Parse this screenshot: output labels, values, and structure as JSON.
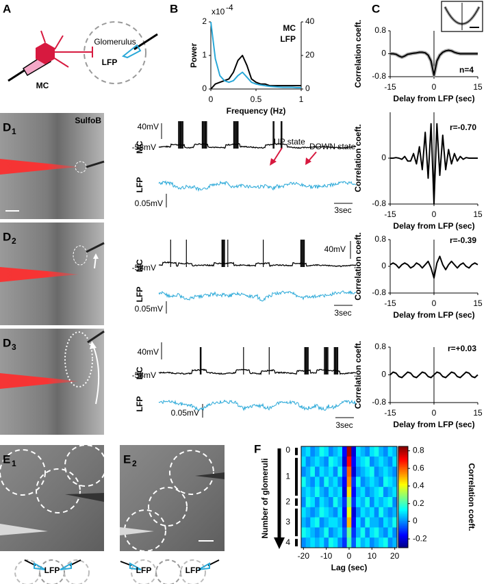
{
  "figure": {
    "A": {
      "label": "A",
      "mc": "MC",
      "glomerulus": "Glomerulus",
      "lfp": "LFP"
    },
    "B": {
      "label": "B",
      "scale_base": "x10",
      "scale_exponent": "-4"
    },
    "C": {
      "label": "C"
    },
    "D": [
      {
        "letter": "D",
        "sub": "1",
        "dye": "SulfoB",
        "mc": "MC",
        "lfp": "LFP",
        "mc_scale": "40mV",
        "rest": "-58mV",
        "lfp_scale": "0.05mV",
        "time_scale": "3sec",
        "up": "UP state",
        "down": "DOWN state"
      },
      {
        "letter": "D",
        "sub": "2",
        "mc": "MC",
        "lfp": "LFP",
        "mc_scale": "40mV",
        "rest": "-58mV",
        "lfp_scale": "0.05mV",
        "time_scale": "3sec"
      },
      {
        "letter": "D",
        "sub": "3",
        "mc": "MC",
        "lfp": "LFP",
        "mc_scale": "40mV",
        "rest": "-58mV",
        "lfp_scale": "0.05mV",
        "time_scale": "3sec"
      }
    ],
    "E": [
      {
        "letter": "E",
        "sub": "1",
        "lfp": "LFP"
      },
      {
        "letter": "E",
        "sub": "2",
        "lfp_left": "LFP",
        "lfp_right": "LFP"
      }
    ],
    "F": {
      "label": "F",
      "arrow_label": "Number of glomeruli"
    }
  },
  "chart_data": [
    {
      "type": "line",
      "ylabel": "Power",
      "xlabel": "Frequency (Hz)",
      "legend": "upper right",
      "x": [
        0,
        0.05,
        0.1,
        0.15,
        0.2,
        0.25,
        0.3,
        0.35,
        0.4,
        0.45,
        0.5,
        0.55,
        0.6,
        0.65,
        0.7,
        0.75,
        0.8,
        0.85,
        0.9,
        0.95,
        1
      ],
      "xlim": [
        0,
        1
      ],
      "xticks": [
        0,
        0.5,
        1
      ],
      "ylim": [
        0,
        2
      ],
      "yticks": [
        0,
        1,
        2
      ],
      "y2lim": [
        0,
        40
      ],
      "y2ticks": [
        0,
        20,
        40
      ],
      "series": [
        {
          "name": "MC",
          "color": "#000000",
          "axis": "y2",
          "values": [
            0,
            3,
            4,
            5,
            6,
            10,
            17,
            20,
            14,
            6,
            4,
            3,
            3,
            2,
            2,
            2,
            2,
            2,
            2,
            2,
            2
          ]
        },
        {
          "name": "LFP",
          "color": "#29a8d8",
          "values": [
            2,
            0.9,
            0.4,
            0.25,
            0.2,
            0.25,
            0.4,
            0.5,
            0.35,
            0.2,
            0.15,
            0.12,
            0.1,
            0.08,
            0.07,
            0.06,
            0.05,
            0.05,
            0.05,
            0.04,
            0.04
          ]
        }
      ]
    },
    {
      "type": "line",
      "ylabel": "Correlation coeft.",
      "xlabel": "Delay from LFP (sec)",
      "annotation": "n=4",
      "x": [
        -15,
        -14,
        -13,
        -12,
        -11,
        -10,
        -9,
        -8,
        -7,
        -6,
        -5,
        -4,
        -3,
        -2,
        -1,
        0,
        1,
        2,
        3,
        4,
        5,
        6,
        7,
        8,
        9,
        10,
        11,
        12,
        13,
        14,
        15
      ],
      "xlim": [
        -15,
        15
      ],
      "xticks": [
        -15,
        0,
        15
      ],
      "ylim": [
        -0.8,
        0.8
      ],
      "yticks": [
        -0.8,
        0,
        0.8
      ],
      "series": [
        {
          "color": "#000000",
          "values": [
            0,
            0,
            -0.02,
            -0.08,
            -0.12,
            -0.08,
            -0.02,
            0,
            0.02,
            0.03,
            0.05,
            0.05,
            0.03,
            -0.05,
            -0.25,
            -0.75,
            -0.25,
            -0.05,
            0.05,
            0.1,
            0.12,
            0.1,
            0.05,
            0.02,
            0,
            0,
            0,
            0,
            0,
            0,
            0
          ]
        }
      ]
    },
    {
      "type": "line",
      "ylabel": "Correlation coeft.",
      "xlabel": "Delay from LFP (sec)",
      "annotation": "r=-0.70",
      "x": [
        -15,
        -14,
        -13,
        -12,
        -11,
        -10,
        -9,
        -8,
        -7,
        -6,
        -5,
        -4,
        -3,
        -2,
        -1,
        0,
        1,
        2,
        3,
        4,
        5,
        6,
        7,
        8,
        9,
        10,
        11,
        12,
        13,
        14,
        15
      ],
      "xlim": [
        -15,
        15
      ],
      "xticks": [
        -15,
        0,
        15
      ],
      "ylim": [
        -0.8,
        0.8
      ],
      "yticks": [
        -0.8,
        0
      ],
      "series": [
        {
          "color": "#000000",
          "values": [
            0,
            0,
            0.01,
            0,
            -0.02,
            0.03,
            -0.05,
            -0.05,
            0.08,
            -0.1,
            0.2,
            -0.2,
            0.45,
            -0.35,
            0.6,
            -0.8,
            0.6,
            -0.3,
            0.4,
            -0.2,
            0.15,
            -0.1,
            0.08,
            -0.05,
            0.03,
            -0.02,
            0.01,
            0,
            0,
            0,
            0
          ]
        }
      ]
    },
    {
      "type": "line",
      "ylabel": "Correlation coeft.",
      "xlabel": "Delay from LFP (sec)",
      "annotation": "r=-0.39",
      "x": [
        -15,
        -14,
        -13,
        -12,
        -11,
        -10,
        -9,
        -8,
        -7,
        -6,
        -5,
        -4,
        -3,
        -2,
        -1,
        0,
        1,
        2,
        3,
        4,
        5,
        6,
        7,
        8,
        9,
        10,
        11,
        12,
        13,
        14,
        15
      ],
      "xlim": [
        -15,
        15
      ],
      "xticks": [
        -15,
        0,
        15
      ],
      "ylim": [
        -0.8,
        0.8
      ],
      "yticks": [
        -0.8,
        0,
        0.8
      ],
      "series": [
        {
          "color": "#000000",
          "values": [
            0.05,
            0.1,
            0.05,
            -0.05,
            0.05,
            0.1,
            0.05,
            -0.05,
            0,
            0.1,
            0.05,
            -0.05,
            0.05,
            0.15,
            -0.05,
            -0.35,
            0.1,
            0.3,
            0.05,
            -0.1,
            0.05,
            0.15,
            0.05,
            -0.05,
            0.05,
            0.1,
            0,
            -0.05,
            0.05,
            0.1,
            0.05
          ]
        }
      ]
    },
    {
      "type": "line",
      "ylabel": "Correlation coeft.",
      "xlabel": "Delay from LFP (sec)",
      "annotation": "r=+0.03",
      "x": [
        -15,
        -14,
        -13,
        -12,
        -11,
        -10,
        -9,
        -8,
        -7,
        -6,
        -5,
        -4,
        -3,
        -2,
        -1,
        0,
        1,
        2,
        3,
        4,
        5,
        6,
        7,
        8,
        9,
        10,
        11,
        12,
        13,
        14,
        15
      ],
      "xlim": [
        -15,
        15
      ],
      "xticks": [
        -15,
        0,
        15
      ],
      "ylim": [
        -0.8,
        0.8
      ],
      "yticks": [
        -0.8,
        0,
        0.8
      ],
      "series": [
        {
          "color": "#000000",
          "values": [
            0,
            0.08,
            0.05,
            -0.05,
            -0.08,
            0,
            0.08,
            0.05,
            -0.05,
            -0.08,
            0,
            0.08,
            0.05,
            -0.05,
            -0.08,
            0,
            0.08,
            0.05,
            -0.05,
            -0.08,
            0,
            0.08,
            0.05,
            -0.05,
            -0.08,
            0,
            0.08,
            0.05,
            -0.05,
            -0.08,
            0
          ]
        }
      ]
    },
    {
      "type": "heatmap",
      "xlabel": "Lag (sec)",
      "zlabel": "Correlation coeft.",
      "colormap": "jet",
      "x": [
        -20,
        -18,
        -16,
        -14,
        -12,
        -10,
        -8,
        -6,
        -4,
        -2,
        0,
        2,
        4,
        6,
        8,
        10,
        12,
        14,
        16,
        18,
        20
      ],
      "xlim": [
        -21,
        21
      ],
      "xticks": [
        -20,
        -10,
        0,
        10,
        20
      ],
      "zlim": [
        -0.3,
        0.85
      ],
      "zticks": [
        0.8,
        0.6,
        0.4,
        0.2,
        0,
        -0.2
      ],
      "row_labels": [
        "0",
        "1",
        null,
        null,
        null,
        "2",
        "3",
        null,
        null,
        "4"
      ],
      "z": [
        [
          0.05,
          0.1,
          0,
          0.05,
          0.15,
          0.1,
          0,
          0.05,
          0.1,
          -0.15,
          0.8,
          -0.2,
          0.1,
          0.05,
          0,
          0.1,
          0.15,
          0.05,
          0,
          0.1,
          0.05
        ],
        [
          0.1,
          0,
          0.05,
          0.1,
          0.05,
          0,
          0.15,
          0.1,
          0.05,
          -0.2,
          0.7,
          -0.15,
          0.05,
          0.1,
          0.15,
          0,
          0.05,
          0.1,
          0.05,
          0,
          0.1
        ],
        [
          0,
          0.05,
          0.15,
          0,
          0.1,
          0.05,
          0.1,
          0,
          0.15,
          -0.1,
          0.6,
          -0.2,
          0,
          0.05,
          0.1,
          0.15,
          0,
          0.05,
          0.1,
          0.05,
          0
        ],
        [
          0.15,
          0.05,
          0,
          0.1,
          0,
          0.15,
          0.05,
          0.1,
          0,
          -0.15,
          0.55,
          -0.1,
          0.15,
          0,
          0.05,
          0.1,
          0.05,
          0,
          0.15,
          0.1,
          0.05
        ],
        [
          0.05,
          0.1,
          0.05,
          0.15,
          0.05,
          0,
          0.1,
          0.05,
          0.1,
          -0.2,
          0.45,
          -0.15,
          0.05,
          0.1,
          0,
          0.05,
          0.1,
          0.15,
          0,
          0.05,
          0.1
        ],
        [
          0,
          0.15,
          0.1,
          0,
          0.1,
          0.05,
          0,
          0.15,
          0.05,
          -0.1,
          0.3,
          -0.1,
          0.1,
          0.05,
          0.15,
          0,
          0.1,
          0.05,
          0.1,
          0.15,
          0
        ],
        [
          0.1,
          0.05,
          0,
          0.05,
          0.15,
          0.1,
          0.05,
          0,
          0.1,
          -0.15,
          0.4,
          -0.2,
          0,
          0.1,
          0.05,
          0.1,
          0,
          0.15,
          0.05,
          0,
          0.05
        ],
        [
          0.05,
          0,
          0.1,
          0.15,
          0,
          0.05,
          0.1,
          0.1,
          0.05,
          -0.1,
          0.5,
          -0.15,
          0.1,
          0,
          0.15,
          0.05,
          0.05,
          0,
          0.1,
          0.05,
          0.15
        ],
        [
          0.15,
          0.1,
          0.05,
          0,
          0.05,
          0.15,
          0,
          0.05,
          0.1,
          -0.05,
          0.25,
          -0.1,
          0.05,
          0.15,
          0,
          0.1,
          0.15,
          0.05,
          0,
          0.1,
          0
        ],
        [
          0,
          0.05,
          0.1,
          0.05,
          0.1,
          0,
          0.15,
          0.1,
          0,
          -0.1,
          0.2,
          -0.05,
          0.15,
          0.05,
          0.1,
          0,
          0.05,
          0.1,
          0.15,
          0,
          0.05
        ]
      ]
    }
  ]
}
